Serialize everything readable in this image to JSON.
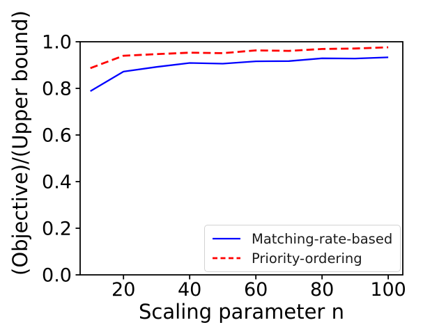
{
  "chart_data": {
    "type": "line",
    "title": "",
    "xlabel": "Scaling parameter n",
    "ylabel": "(Objective)/(Upper bound)",
    "x": [
      10,
      20,
      30,
      40,
      50,
      60,
      70,
      80,
      90,
      100
    ],
    "series": [
      {
        "name": "Matching-rate-based",
        "color": "#0000ff",
        "style": "solid",
        "values": [
          0.788,
          0.872,
          0.892,
          0.909,
          0.906,
          0.916,
          0.917,
          0.929,
          0.928,
          0.933
        ]
      },
      {
        "name": "Priority-ordering",
        "color": "#ff0000",
        "style": "dashed",
        "values": [
          0.887,
          0.94,
          0.947,
          0.953,
          0.951,
          0.963,
          0.961,
          0.969,
          0.971,
          0.976
        ]
      }
    ],
    "xticks": [
      20,
      40,
      60,
      80,
      100
    ],
    "yticks": [
      0.0,
      0.2,
      0.4,
      0.6,
      0.8,
      1.0
    ],
    "xlim": [
      6.9,
      104.4
    ],
    "ylim": [
      0.0,
      1.0
    ],
    "grid": false,
    "legend_position": "lower right",
    "axis_color": "#000000"
  }
}
